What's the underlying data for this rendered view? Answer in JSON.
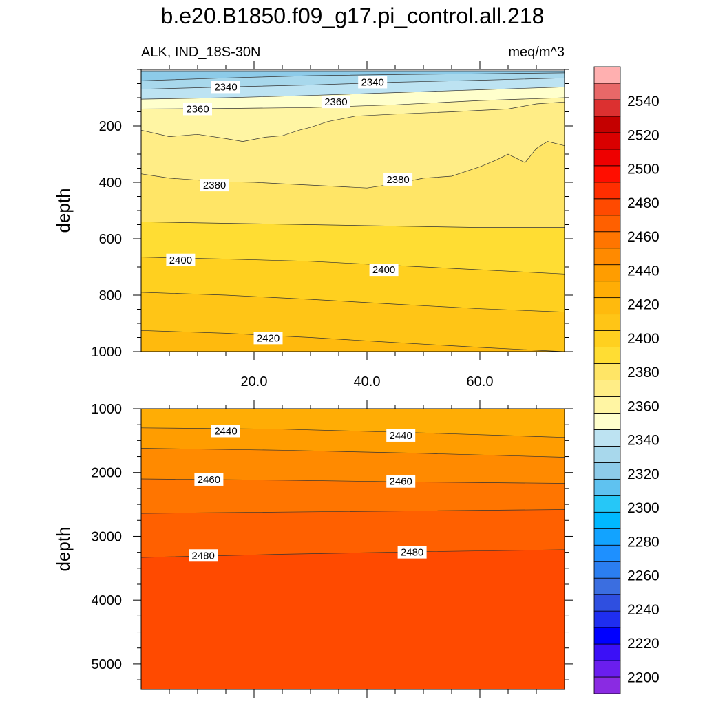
{
  "title": "b.e20.B1850.f09_g17.pi_control.all.218",
  "left_subtitle": "ALK, IND_18S-30N",
  "right_subtitle": "meq/m^3",
  "chart_data": {
    "type": "heatmap",
    "x_range": [
      0,
      75
    ],
    "x_ticks": [
      20.0,
      40.0,
      60.0
    ],
    "x_tick_labels": [
      "20.0",
      "40.0",
      "60.0"
    ],
    "panels": [
      {
        "name": "upper",
        "ylabel": "depth",
        "ylim": [
          0,
          1000
        ],
        "y_inverted": true,
        "y_ticks": [
          200,
          400,
          600,
          800,
          1000
        ],
        "y_tick_labels": [
          "200",
          "400",
          "600",
          "800",
          "1000"
        ],
        "show_x_tick_labels": true,
        "contour_boundaries": [
          {
            "level": 2320,
            "x": [
              0,
              25,
              50,
              75
            ],
            "depth": [
              5,
              5,
              5,
              5
            ]
          },
          {
            "level": 2330,
            "x": [
              0,
              15,
              30,
              45,
              60,
              75
            ],
            "depth": [
              40,
              30,
              22,
              18,
              15,
              12
            ]
          },
          {
            "level": 2340,
            "x": [
              0,
              15,
              30,
              45,
              60,
              75
            ],
            "depth": [
              70,
              62,
              55,
              45,
              38,
              30
            ]
          },
          {
            "level": 2350,
            "x": [
              0,
              15,
              30,
              45,
              60,
              75
            ],
            "depth": [
              105,
              100,
              92,
              82,
              72,
              62
            ]
          },
          {
            "level": 2360,
            "x": [
              0,
              15,
              30,
              45,
              60,
              75
            ],
            "depth": [
              140,
              138,
              135,
              125,
              110,
              100
            ]
          },
          {
            "level": 2370,
            "x": [
              0,
              5,
              10,
              15,
              18,
              22,
              25,
              28,
              30,
              33,
              38,
              45,
              55,
              65,
              70,
              75
            ],
            "depth": [
              215,
              238,
              230,
              245,
              255,
              240,
              235,
              215,
              205,
              185,
              165,
              158,
              150,
              140,
              122,
              115
            ]
          },
          {
            "level": 2380,
            "x": [
              0,
              5,
              10,
              15,
              20,
              25,
              30,
              35,
              40,
              45,
              50,
              55,
              60,
              63,
              65,
              68,
              70,
              72,
              75
            ],
            "depth": [
              370,
              385,
              392,
              398,
              400,
              405,
              410,
              415,
              420,
              405,
              385,
              378,
              345,
              320,
              300,
              330,
              280,
              255,
              270
            ]
          },
          {
            "level": 2390,
            "x": [
              0,
              15,
              30,
              45,
              60,
              75
            ],
            "depth": [
              540,
              545,
              550,
              555,
              560,
              560
            ]
          },
          {
            "level": 2400,
            "x": [
              0,
              15,
              30,
              45,
              60,
              75
            ],
            "depth": [
              665,
              672,
              680,
              695,
              710,
              725
            ]
          },
          {
            "level": 2410,
            "x": [
              0,
              15,
              30,
              45,
              60,
              75
            ],
            "depth": [
              790,
              800,
              815,
              832,
              848,
              860
            ]
          },
          {
            "level": 2420,
            "x": [
              0,
              15,
              30,
              45,
              60,
              75
            ],
            "depth": [
              925,
              935,
              950,
              968,
              985,
              1000
            ]
          }
        ],
        "contour_labels": [
          {
            "text": "2340",
            "x": 15.0,
            "depth": 62
          },
          {
            "text": "2340",
            "x": 41.0,
            "depth": 45
          },
          {
            "text": "2360",
            "x": 10.0,
            "depth": 140
          },
          {
            "text": "2360",
            "x": 34.5,
            "depth": 115
          },
          {
            "text": "2380",
            "x": 13.0,
            "depth": 410
          },
          {
            "text": "2380",
            "x": 45.5,
            "depth": 390
          },
          {
            "text": "2400",
            "x": 7.0,
            "depth": 675
          },
          {
            "text": "2400",
            "x": 43.0,
            "depth": 710
          },
          {
            "text": "2420",
            "x": 22.5,
            "depth": 952
          }
        ]
      },
      {
        "name": "lower",
        "ylabel": "depth",
        "ylim": [
          1000,
          5400
        ],
        "y_inverted": true,
        "y_ticks": [
          1000,
          2000,
          3000,
          4000,
          5000
        ],
        "y_tick_labels": [
          "1000",
          "2000",
          "3000",
          "4000",
          "5000"
        ],
        "show_x_tick_labels": false,
        "contour_boundaries": [
          {
            "level": 2430,
            "x": [
              0,
              25,
              50,
              75
            ],
            "depth": [
              1000,
              1000,
              1000,
              1000
            ]
          },
          {
            "level": 2440,
            "x": [
              0,
              25,
              50,
              75
            ],
            "depth": [
              1300,
              1320,
              1380,
              1450
            ]
          },
          {
            "level": 2450,
            "x": [
              0,
              25,
              50,
              75
            ],
            "depth": [
              1620,
              1650,
              1700,
              1760
            ]
          },
          {
            "level": 2460,
            "x": [
              0,
              25,
              50,
              75
            ],
            "depth": [
              2100,
              2120,
              2150,
              2170
            ]
          },
          {
            "level": 2470,
            "x": [
              0,
              25,
              50,
              75
            ],
            "depth": [
              2640,
              2620,
              2600,
              2580
            ]
          },
          {
            "level": 2480,
            "x": [
              0,
              25,
              50,
              75
            ],
            "depth": [
              3330,
              3280,
              3240,
              3210
            ]
          },
          {
            "level": 2490,
            "x": [
              0,
              25,
              50,
              75
            ],
            "depth": [
              5400,
              5400,
              5400,
              5400
            ]
          }
        ],
        "contour_labels": [
          {
            "text": "2440",
            "x": 15.0,
            "depth": 1350
          },
          {
            "text": "2440",
            "x": 46.0,
            "depth": 1420
          },
          {
            "text": "2460",
            "x": 12.0,
            "depth": 2110
          },
          {
            "text": "2460",
            "x": 46.0,
            "depth": 2140
          },
          {
            "text": "2480",
            "x": 11.0,
            "depth": 3300
          },
          {
            "text": "2480",
            "x": 48.0,
            "depth": 3250
          }
        ]
      }
    ],
    "colorbar": {
      "min": 2190,
      "max": 2560,
      "step": 10,
      "labels": [
        "2200",
        "2220",
        "2240",
        "2260",
        "2280",
        "2300",
        "2320",
        "2340",
        "2360",
        "2380",
        "2400",
        "2420",
        "2440",
        "2460",
        "2480",
        "2500",
        "2520",
        "2540"
      ],
      "colors": [
        "#8a2be2",
        "#6a1eee",
        "#3b10f7",
        "#0000ff",
        "#1f2ef0",
        "#2f4fe0",
        "#3b6ee0",
        "#2b7ef0",
        "#1e90ff",
        "#12a3ff",
        "#00b8ff",
        "#26c7f7",
        "#5fc2f0",
        "#8dcbe9",
        "#a8d8ec",
        "#bde3f2",
        "#ffffcc",
        "#fff5a3",
        "#ffed86",
        "#ffe566",
        "#ffdd33",
        "#ffd01f",
        "#ffc516",
        "#ffba0d",
        "#ffad05",
        "#ff9d00",
        "#ff8a00",
        "#ff7500",
        "#ff6000",
        "#ff4a00",
        "#ff2e00",
        "#ff0e00",
        "#ee0000",
        "#d90000",
        "#c40000",
        "#dc3030",
        "#e86868",
        "#ffb0b0"
      ]
    }
  }
}
